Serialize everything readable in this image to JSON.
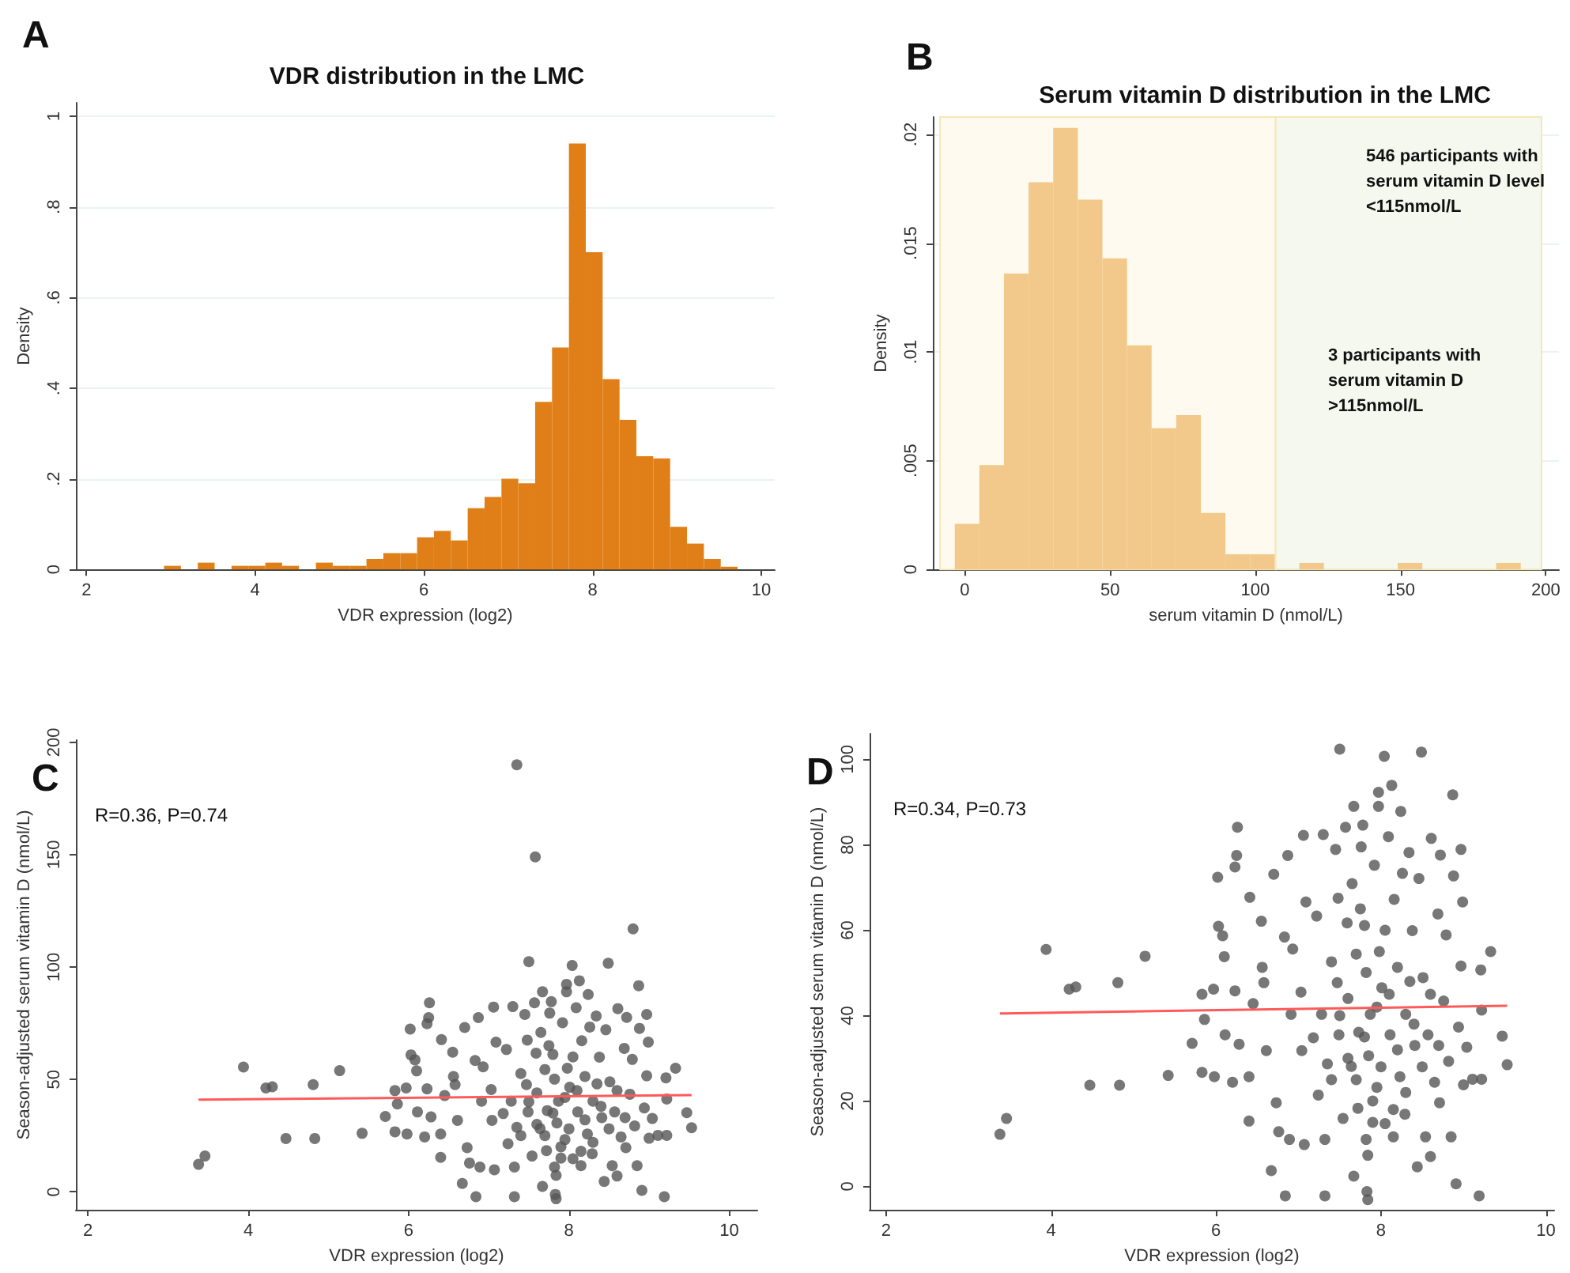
{
  "chart_data": [
    {
      "type": "histogram",
      "title": "VDR distribution in the LMC",
      "xlabel": "VDR expression (log2)",
      "ylabel": "Density",
      "annotations": [
        "A"
      ],
      "color": "#e07f17",
      "bins": [
        2.92,
        3.12,
        3.32,
        3.52,
        3.72,
        3.92,
        4.12,
        4.32,
        4.52,
        4.72,
        4.92,
        5.12,
        5.32,
        5.52,
        5.72,
        5.92,
        6.12,
        6.32,
        6.52,
        6.72,
        6.92,
        7.12,
        7.32,
        7.52,
        7.72,
        7.92,
        8.12,
        8.32,
        8.52,
        8.72,
        8.92,
        9.12,
        9.32,
        9.52,
        9.72
      ],
      "values": [
        0.008,
        0,
        0.015,
        0,
        0.008,
        0.008,
        0.015,
        0.008,
        0,
        0.015,
        0.008,
        0.008,
        0.023,
        0.036,
        0.036,
        0.071,
        0.085,
        0.064,
        0.135,
        0.16,
        0.2,
        0.19,
        0.37,
        0.49,
        0.94,
        0.7,
        0.42,
        0.33,
        0.25,
        0.245,
        0.094,
        0.057,
        0.023,
        0.006
      ],
      "xlim": [
        1.875,
        10.16
      ],
      "ylim": [
        0,
        1.03
      ],
      "xticks": [
        2,
        4,
        6,
        8,
        10
      ],
      "yticks": [
        0,
        {
          "value": 0.2,
          "label": ".2"
        },
        {
          "value": 0.4,
          "label": ".4"
        },
        {
          "value": 0.6,
          "label": ".6"
        },
        {
          "value": 0.8,
          "label": ".8"
        },
        1
      ],
      "grid": "y"
    },
    {
      "type": "histogram",
      "title": "Serum vitamin D distribution in the LMC",
      "xlabel": "serum vitamin D (nmol/L)",
      "ylabel": "Density",
      "annotations": [
        "B",
        "546 participants with serum vitamin D level <115nmol/L",
        "3 participants with serum vitamin D >115nmol/L"
      ],
      "color": "#f2c98a",
      "bins": [
        -3.45,
        5.02,
        13.49,
        21.96,
        30.43,
        38.9,
        47.37,
        55.84,
        64.31,
        72.78,
        81.25,
        89.72,
        98.19,
        106.66,
        115.13,
        123.6,
        132.07,
        140.54,
        149.01,
        157.48,
        165.95,
        174.42,
        182.89,
        191.36
      ],
      "values": [
        0.0021,
        0.0048,
        0.0136,
        0.0178,
        0.0203,
        0.017,
        0.0143,
        0.0103,
        0.0065,
        0.0071,
        0.0026,
        0.0007,
        0.0007,
        0,
        0.0003,
        0,
        0,
        0,
        0.0003,
        0,
        0,
        0,
        0.0003
      ],
      "bands": [
        {
          "axis": "x",
          "from": -8.5,
          "to": 107,
          "color": "#fffaef"
        },
        {
          "axis": "x",
          "from": 107,
          "to": 198.5,
          "color": "#f4f8ef"
        }
      ],
      "xlim": [
        -11,
        204.5
      ],
      "ylim": [
        0,
        0.0208
      ],
      "xticks": [
        0,
        50,
        100,
        150,
        200
      ],
      "yticks": [
        0,
        {
          "value": 0.005,
          "label": ".005"
        },
        {
          "value": 0.01,
          "label": ".01"
        },
        {
          "value": 0.015,
          "label": ".015"
        },
        {
          "value": 0.02,
          "label": ".02"
        }
      ],
      "grid": "y"
    },
    {
      "type": "scatter",
      "xlabel": "VDR expression (log2)",
      "ylabel": "Season-adjusted serum vitamin D (nmol/L)",
      "annotations": [
        "C",
        "R=0.36, P=0.74"
      ],
      "series": [
        {
          "type": "scatter",
          "color": "#555555",
          "marker": "circle",
          "x": [
            3.38,
            3.46,
            3.94,
            4.22,
            4.3,
            4.47,
            4.81,
            4.83,
            5.14,
            5.42,
            5.71,
            5.83,
            5.83,
            5.86,
            5.97,
            5.98,
            6.02,
            6.03,
            6.08,
            6.1,
            6.11,
            6.2,
            6.23,
            6.25,
            6.26,
            6.23,
            6.28,
            6.41,
            6.4,
            6.4,
            6.45,
            6.55,
            6.56,
            6.58,
            6.61,
            6.67,
            6.7,
            6.73,
            6.76,
            6.83,
            6.84,
            6.87,
            6.89,
            6.91,
            6.93,
            7.03,
            7.04,
            7.06,
            7.07,
            7.09,
            7.18,
            7.22,
            7.24,
            7.28,
            7.3,
            7.32,
            7.32,
            7.35,
            7.4,
            7.45,
            7.47,
            7.48,
            7.49,
            7.5,
            7.54,
            7.57,
            7.59,
            7.6,
            7.64,
            7.65,
            7.67,
            7.67,
            7.7,
            7.72,
            7.73,
            7.76,
            7.78,
            7.8,
            7.82,
            7.82,
            7.83,
            7.84,
            7.84,
            7.85,
            7.87,
            7.92,
            7.95,
            7.97,
            7.97,
            7.98,
            8.01,
            8.04,
            8.05,
            8.09,
            8.11,
            8.13,
            8.15,
            8.16,
            8.2,
            8.23,
            8.24,
            8.26,
            8.29,
            8.3,
            8.34,
            8.38,
            8.41,
            8.44,
            8.46,
            8.49,
            8.51,
            8.54,
            8.57,
            8.6,
            8.61,
            8.65,
            8.69,
            8.71,
            8.72,
            8.76,
            8.79,
            8.82,
            8.85,
            8.87,
            8.88,
            8.91,
            8.94,
            8.97,
            8.97,
            8.99,
            9.0,
            9.04,
            9.11,
            9.19,
            9.21,
            9.22,
            9.22,
            9.33,
            9.47,
            9.53,
            7.6,
            7.7,
            7.8,
            7.9,
            8.0,
            8.1,
            8.2,
            7.5,
            7.4,
            8.3,
            8.4,
            8.5,
            8.6,
            8.7,
            7.9,
            7.95,
            8.05,
            7.75,
            8.15,
            8.35,
            7.35,
            7.58,
            8.8
          ],
          "values": [
            12.2,
            15.9,
            55.5,
            46.2,
            46.7,
            23.7,
            47.7,
            23.7,
            53.9,
            26.0,
            33.5,
            45.0,
            26.7,
            39.1,
            46.2,
            25.7,
            72.4,
            60.9,
            58.7,
            53.8,
            35.5,
            24.4,
            45.8,
            77.5,
            84.1,
            74.8,
            33.3,
            67.7,
            15.3,
            25.7,
            42.8,
            62.1,
            51.3,
            47.7,
            31.8,
            3.7,
            73.1,
            19.6,
            12.8,
            58.4,
            -2.2,
            77.5,
            11.0,
            40.3,
            55.6,
            45.5,
            31.8,
            82.2,
            9.8,
            66.6,
            34.8,
            63.3,
            21.4,
            40.3,
            82.4,
            -2.2,
            11.0,
            28.7,
            52.6,
            78.9,
            47.7,
            67.5,
            35.5,
            102.4,
            15.9,
            84.1,
            61.7,
            44.0,
            28.1,
            70.9,
            89.0,
            2.4,
            54.4,
            18.3,
            36.1,
            79.5,
            84.6,
            61.1,
            50.1,
            11.0,
            -1.2,
            -3.1,
            7.3,
            30.6,
            40.3,
            75.2,
            23.2,
            92.3,
            89.0,
            55.0,
            46.5,
            100.7,
            14.7,
            81.9,
            35.5,
            93.9,
            11.6,
            67.2,
            51.3,
            25.7,
            87.8,
            73.3,
            16.9,
            40.3,
            78.2,
            59.9,
            33.0,
            4.6,
            72.1,
            101.7,
            48.9,
            11.6,
            35.5,
            7.0,
            81.5,
            24.4,
            63.8,
            19.6,
            77.6,
            43.4,
            58.9,
            29.3,
            11.6,
            91.7,
            72.7,
            0.6,
            37.3,
            78.9,
            51.6,
            66.6,
            23.8,
            32.6,
            25.1,
            -2.2,
            50.7,
            41.3,
            25.1,
            55.0,
            35.2,
            28.5,
            30,
            25,
            35,
            20,
            28,
            45,
            32,
            40,
            25,
            22,
            38,
            28,
            45,
            33,
            15,
            42,
            60,
            65,
            18,
            48,
            190,
            149,
            117
          ]
        },
        {
          "type": "line",
          "color": "#ff5a5a",
          "x": [
            3.38,
            9.53
          ],
          "values": [
            41,
            43
          ]
        }
      ],
      "xlim": [
        1.85,
        10.35
      ],
      "ylim": [
        -8,
        201
      ],
      "xticks": [
        2,
        4,
        6,
        8,
        10
      ],
      "yticks": [
        0,
        50,
        100,
        150,
        200
      ],
      "grid": false
    },
    {
      "type": "scatter",
      "xlabel": "VDR expression (log2)",
      "ylabel": "Season-adjusted serum vitamin D (nmol/L)",
      "annotations": [
        "D",
        "R=0.34, P=0.73"
      ],
      "series": [
        {
          "type": "scatter",
          "color": "#555555",
          "marker": "circle",
          "x": [
            3.38,
            3.46,
            3.94,
            4.22,
            4.3,
            4.47,
            4.81,
            4.83,
            5.14,
            5.42,
            5.71,
            5.83,
            5.83,
            5.86,
            5.97,
            5.98,
            6.02,
            6.03,
            6.08,
            6.1,
            6.11,
            6.2,
            6.23,
            6.25,
            6.26,
            6.23,
            6.28,
            6.41,
            6.4,
            6.4,
            6.45,
            6.55,
            6.56,
            6.58,
            6.61,
            6.67,
            6.7,
            6.73,
            6.76,
            6.83,
            6.84,
            6.87,
            6.89,
            6.91,
            6.93,
            7.03,
            7.04,
            7.06,
            7.07,
            7.09,
            7.18,
            7.22,
            7.24,
            7.28,
            7.3,
            7.32,
            7.32,
            7.35,
            7.4,
            7.45,
            7.47,
            7.48,
            7.49,
            7.5,
            7.54,
            7.57,
            7.59,
            7.6,
            7.64,
            7.65,
            7.67,
            7.67,
            7.7,
            7.72,
            7.73,
            7.76,
            7.78,
            7.8,
            7.82,
            7.82,
            7.83,
            7.84,
            7.84,
            7.85,
            7.87,
            7.92,
            7.95,
            7.97,
            7.97,
            7.98,
            8.01,
            8.04,
            8.05,
            8.09,
            8.11,
            8.13,
            8.15,
            8.16,
            8.2,
            8.23,
            8.24,
            8.26,
            8.29,
            8.3,
            8.34,
            8.38,
            8.41,
            8.44,
            8.46,
            8.49,
            8.51,
            8.54,
            8.57,
            8.6,
            8.61,
            8.65,
            8.69,
            8.71,
            8.72,
            8.76,
            8.79,
            8.82,
            8.85,
            8.87,
            8.88,
            8.91,
            8.94,
            8.97,
            8.97,
            8.99,
            9.0,
            9.04,
            9.11,
            9.19,
            9.21,
            9.22,
            9.22,
            9.33,
            9.47,
            9.53,
            7.6,
            7.7,
            7.8,
            7.9,
            8.0,
            8.1,
            8.2,
            7.5,
            7.4,
            8.3,
            8.4,
            8.5,
            8.6,
            8.7,
            7.9,
            7.95,
            8.05,
            7.75,
            8.15,
            8.35
          ],
          "values": [
            12.2,
            15.9,
            55.5,
            46.2,
            46.7,
            23.7,
            47.7,
            23.7,
            53.9,
            26.0,
            33.5,
            45.0,
            26.7,
            39.1,
            46.2,
            25.7,
            72.4,
            60.9,
            58.7,
            53.8,
            35.5,
            24.4,
            45.8,
            77.5,
            84.1,
            74.8,
            33.3,
            67.7,
            15.3,
            25.7,
            42.8,
            62.1,
            51.3,
            47.7,
            31.8,
            3.7,
            73.1,
            19.6,
            12.8,
            58.4,
            -2.2,
            77.5,
            11.0,
            40.3,
            55.6,
            45.5,
            31.8,
            82.2,
            9.8,
            66.6,
            34.8,
            63.3,
            21.4,
            40.3,
            82.4,
            -2.2,
            11.0,
            28.7,
            52.6,
            78.9,
            47.7,
            67.5,
            35.5,
            102.4,
            15.9,
            84.1,
            61.7,
            44.0,
            28.1,
            70.9,
            89.0,
            2.4,
            54.4,
            18.3,
            36.1,
            79.5,
            84.6,
            61.1,
            50.1,
            11.0,
            -1.2,
            -3.1,
            7.3,
            30.6,
            40.3,
            75.2,
            23.2,
            92.3,
            89.0,
            55.0,
            46.5,
            100.7,
            14.7,
            81.9,
            35.5,
            93.9,
            11.6,
            67.2,
            51.3,
            25.7,
            87.8,
            73.3,
            16.9,
            40.3,
            78.2,
            59.9,
            33.0,
            4.6,
            72.1,
            101.7,
            48.9,
            11.6,
            35.5,
            7.0,
            81.5,
            24.4,
            63.8,
            19.6,
            77.6,
            43.4,
            58.9,
            29.3,
            11.6,
            91.7,
            72.7,
            0.6,
            37.3,
            78.9,
            51.6,
            66.6,
            23.8,
            32.6,
            25.1,
            -2.2,
            50.7,
            41.3,
            25.1,
            55.0,
            35.2,
            28.5,
            30,
            25,
            35,
            20,
            28,
            45,
            32,
            40,
            25,
            22,
            38,
            28,
            45,
            33,
            15,
            42,
            60,
            65,
            18,
            48
          ]
        },
        {
          "type": "line",
          "color": "#ff5a5a",
          "x": [
            3.38,
            9.53
          ],
          "values": [
            40.5,
            42.3
          ]
        }
      ],
      "xlim": [
        1.8,
        10.1
      ],
      "ylim": [
        -5.5,
        106
      ],
      "xticks": [
        2,
        4,
        6,
        8,
        10
      ],
      "yticks": [
        0,
        20,
        40,
        60,
        80,
        100
      ],
      "grid": false
    }
  ]
}
